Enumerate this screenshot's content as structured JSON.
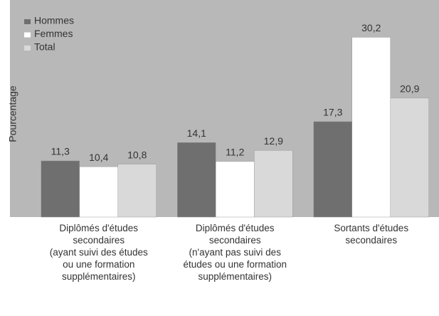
{
  "chart_data": {
    "type": "bar",
    "ylabel": "Pourcentage",
    "categories": [
      "Diplômés d'études\nsecondaires\n(ayant suivi des études\nou une formation\nsupplémentaires)",
      "Diplômés d'études\nsecondaires\n(n'ayant pas suivi des\nétudes ou une formation\nsupplémentaires)",
      "Sortants d'études\nsecondaires"
    ],
    "series": [
      {
        "name": "Hommes",
        "color": "#6f6f6f",
        "values": [
          11.3,
          14.1,
          17.3
        ],
        "value_labels": [
          "11,3",
          "14,1",
          "17,3"
        ]
      },
      {
        "name": "Femmes",
        "color": "#ffffff",
        "values": [
          10.4,
          11.2,
          30.2
        ],
        "value_labels": [
          "10,4",
          "11,2",
          "30,2"
        ]
      },
      {
        "name": "Total",
        "color": "#d9d9d9",
        "values": [
          10.8,
          12.9,
          20.9
        ],
        "value_labels": [
          "10,8",
          "12,9",
          "20,9"
        ]
      }
    ],
    "ylim": [
      2.7,
      35.9
    ],
    "legend": "upper left"
  }
}
